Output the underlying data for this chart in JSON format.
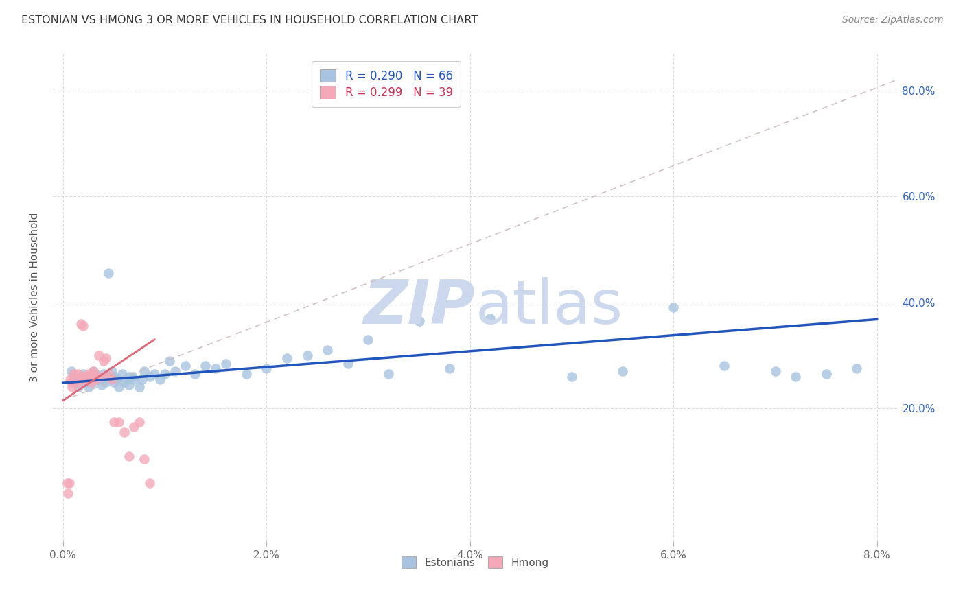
{
  "title": "ESTONIAN VS HMONG 3 OR MORE VEHICLES IN HOUSEHOLD CORRELATION CHART",
  "source": "Source: ZipAtlas.com",
  "ylabel": "3 or more Vehicles in Household",
  "xlim": [
    -0.001,
    0.082
  ],
  "ylim": [
    -0.05,
    0.87
  ],
  "x_ticks": [
    0.0,
    0.02,
    0.04,
    0.06,
    0.08
  ],
  "x_tick_labels": [
    "0.0%",
    "2.0%",
    "4.0%",
    "6.0%",
    "8.0%"
  ],
  "y_ticks_right": [
    0.2,
    0.4,
    0.6,
    0.8
  ],
  "y_tick_labels_right": [
    "20.0%",
    "40.0%",
    "60.0%",
    "80.0%"
  ],
  "legend_r_estonian": "R = 0.290",
  "legend_n_estonian": "N = 66",
  "legend_r_hmong": "R = 0.299",
  "legend_n_hmong": "N = 39",
  "estonian_color": "#a8c4e0",
  "hmong_color": "#f4a8b8",
  "trendline_estonian_color": "#2255bb",
  "trendline_hmong_color": "#dd6677",
  "trendline_hmong_dashed_color": "#ccaaaa",
  "watermark_zip": "ZIP",
  "watermark_atlas": "atlas",
  "watermark_color": "#ccd8ee",
  "background_color": "#ffffff",
  "grid_color": "#dddddd",
  "estonian_scatter_x": [
    0.0008,
    0.001,
    0.0012,
    0.0015,
    0.0015,
    0.0018,
    0.002,
    0.0022,
    0.0025,
    0.0025,
    0.0028,
    0.003,
    0.003,
    0.0032,
    0.0035,
    0.0035,
    0.0038,
    0.004,
    0.004,
    0.0042,
    0.0045,
    0.0048,
    0.005,
    0.005,
    0.0052,
    0.0055,
    0.0058,
    0.006,
    0.0062,
    0.0065,
    0.0065,
    0.0068,
    0.007,
    0.0075,
    0.0078,
    0.008,
    0.0085,
    0.009,
    0.0095,
    0.01,
    0.0105,
    0.011,
    0.012,
    0.013,
    0.014,
    0.015,
    0.016,
    0.018,
    0.02,
    0.022,
    0.024,
    0.026,
    0.028,
    0.03,
    0.032,
    0.035,
    0.038,
    0.042,
    0.05,
    0.055,
    0.06,
    0.065,
    0.07,
    0.072,
    0.075,
    0.078
  ],
  "estonian_scatter_y": [
    0.27,
    0.26,
    0.25,
    0.24,
    0.26,
    0.255,
    0.265,
    0.25,
    0.24,
    0.26,
    0.255,
    0.25,
    0.27,
    0.265,
    0.255,
    0.26,
    0.245,
    0.265,
    0.255,
    0.25,
    0.455,
    0.27,
    0.26,
    0.25,
    0.255,
    0.24,
    0.265,
    0.25,
    0.255,
    0.26,
    0.245,
    0.26,
    0.255,
    0.24,
    0.255,
    0.27,
    0.26,
    0.265,
    0.255,
    0.265,
    0.29,
    0.27,
    0.28,
    0.265,
    0.28,
    0.275,
    0.285,
    0.265,
    0.275,
    0.295,
    0.3,
    0.31,
    0.285,
    0.33,
    0.265,
    0.365,
    0.275,
    0.37,
    0.26,
    0.27,
    0.39,
    0.28,
    0.27,
    0.26,
    0.265,
    0.275
  ],
  "hmong_scatter_x": [
    0.0004,
    0.0005,
    0.0006,
    0.0007,
    0.0008,
    0.0009,
    0.001,
    0.001,
    0.0012,
    0.0013,
    0.0014,
    0.0015,
    0.0015,
    0.0016,
    0.0018,
    0.002,
    0.002,
    0.0022,
    0.0023,
    0.0025,
    0.0025,
    0.0028,
    0.003,
    0.003,
    0.0032,
    0.0035,
    0.0038,
    0.004,
    0.0042,
    0.0045,
    0.0048,
    0.005,
    0.0055,
    0.006,
    0.0065,
    0.007,
    0.0075,
    0.008,
    0.0085
  ],
  "hmong_scatter_y": [
    0.06,
    0.04,
    0.06,
    0.255,
    0.25,
    0.24,
    0.255,
    0.265,
    0.25,
    0.255,
    0.255,
    0.25,
    0.265,
    0.26,
    0.36,
    0.355,
    0.26,
    0.255,
    0.255,
    0.265,
    0.26,
    0.25,
    0.265,
    0.27,
    0.255,
    0.3,
    0.26,
    0.29,
    0.295,
    0.265,
    0.255,
    0.175,
    0.175,
    0.155,
    0.11,
    0.165,
    0.175,
    0.105,
    0.06
  ],
  "est_trend_x0": 0.0,
  "est_trend_x1": 0.08,
  "est_trend_y0": 0.248,
  "est_trend_y1": 0.368,
  "hmong_trend_x0": 0.0,
  "hmong_trend_x1": 0.082,
  "hmong_trend_y0": 0.215,
  "hmong_trend_y1": 0.82,
  "hmong_short_trend_x0": 0.0,
  "hmong_short_trend_x1": 0.009,
  "hmong_short_trend_y0": 0.215,
  "hmong_short_trend_y1": 0.33
}
